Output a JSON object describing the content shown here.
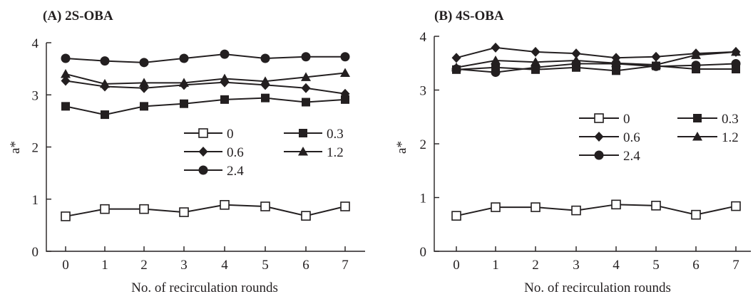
{
  "chart_data": [
    {
      "type": "line",
      "title": "(A) 2S-OBA",
      "xlabel": "No. of recirculation rounds",
      "ylabel": "a*",
      "x": [
        0,
        1,
        2,
        3,
        4,
        5,
        6,
        7
      ],
      "xticks": [
        "0",
        "1",
        "2",
        "3",
        "4",
        "5",
        "6",
        "7"
      ],
      "yticks": [
        "0",
        "1",
        "2",
        "3",
        "4"
      ],
      "xlim": [
        -0.5,
        7.3
      ],
      "ylim": [
        0,
        4
      ],
      "legend": {
        "position": "center-right",
        "columns": 2
      },
      "series": [
        {
          "name": "0",
          "marker": "open-square",
          "values": [
            0.67,
            0.81,
            0.81,
            0.75,
            0.89,
            0.86,
            0.68,
            0.86
          ]
        },
        {
          "name": "0.3",
          "marker": "filled-square",
          "values": [
            2.78,
            2.62,
            2.78,
            2.83,
            2.91,
            2.94,
            2.86,
            2.91
          ]
        },
        {
          "name": "0.6",
          "marker": "filled-diamond",
          "values": [
            3.27,
            3.16,
            3.13,
            3.19,
            3.24,
            3.19,
            3.13,
            3.02
          ]
        },
        {
          "name": "1.2",
          "marker": "filled-triangle",
          "values": [
            3.4,
            3.21,
            3.23,
            3.23,
            3.31,
            3.26,
            3.34,
            3.42
          ]
        },
        {
          "name": "2.4",
          "marker": "filled-circle",
          "values": [
            3.7,
            3.65,
            3.62,
            3.7,
            3.78,
            3.7,
            3.73,
            3.73
          ]
        }
      ]
    },
    {
      "type": "line",
      "title": "(B) 4S-OBA",
      "xlabel": "No. of recirculation rounds",
      "ylabel": "a*",
      "x": [
        0,
        1,
        2,
        3,
        4,
        5,
        6,
        7
      ],
      "xticks": [
        "0",
        "1",
        "2",
        "3",
        "4",
        "5",
        "6",
        "7"
      ],
      "yticks": [
        "0",
        "1",
        "2",
        "3",
        "4"
      ],
      "xlim": [
        -0.5,
        7.3
      ],
      "ylim": [
        0,
        4
      ],
      "legend": {
        "position": "center-right",
        "columns": 2
      },
      "series": [
        {
          "name": "0",
          "marker": "open-square",
          "values": [
            0.66,
            0.82,
            0.82,
            0.76,
            0.87,
            0.85,
            0.68,
            0.84
          ]
        },
        {
          "name": "0.3",
          "marker": "filled-square",
          "values": [
            3.38,
            3.42,
            3.38,
            3.42,
            3.36,
            3.45,
            3.39,
            3.39
          ]
        },
        {
          "name": "0.6",
          "marker": "filled-diamond",
          "values": [
            3.6,
            3.79,
            3.71,
            3.68,
            3.6,
            3.62,
            3.68,
            3.71
          ]
        },
        {
          "name": "1.2",
          "marker": "filled-triangle",
          "values": [
            3.42,
            3.55,
            3.52,
            3.55,
            3.5,
            3.47,
            3.65,
            3.71
          ]
        },
        {
          "name": "2.4",
          "marker": "filled-circle",
          "values": [
            3.39,
            3.33,
            3.42,
            3.49,
            3.49,
            3.44,
            3.46,
            3.49
          ]
        }
      ]
    }
  ]
}
